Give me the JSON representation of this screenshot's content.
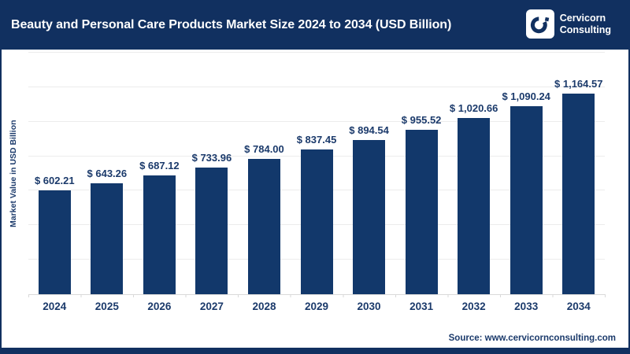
{
  "header": {
    "title": "Beauty and Personal Care Products Market Size 2024 to 2034 (USD Billion)",
    "logo": {
      "name": "Cervicorn Consulting",
      "line1": "Cervicorn",
      "line2": "Consulting"
    }
  },
  "chart_data": {
    "type": "bar",
    "title": "Beauty and Personal Care Products Market Size 2024 to 2034 (USD Billion)",
    "categories": [
      "2024",
      "2025",
      "2026",
      "2027",
      "2028",
      "2029",
      "2030",
      "2031",
      "2032",
      "2033",
      "2034"
    ],
    "values": [
      602.21,
      643.26,
      687.12,
      733.96,
      784.0,
      837.45,
      894.54,
      955.52,
      1020.66,
      1090.24,
      1164.57
    ],
    "bar_labels": [
      "$ 602.21",
      "$ 643.26",
      "$ 687.12",
      "$ 733.96",
      "$ 784.00",
      "$ 837.45",
      "$ 894.54",
      "$ 955.52",
      "$ 1,020.66",
      "$ 1,090.24",
      "$ 1,164.57"
    ],
    "xlabel": "",
    "ylabel": "Market Value in USD Billion",
    "ylim": [
      0,
      1400
    ],
    "grid": true,
    "grid_interval": 200,
    "legend": false,
    "bar_color": "#12386B"
  },
  "footer": {
    "source": "Source: www.cervicornconsulting.com"
  },
  "colors": {
    "navy": "#113060",
    "bar": "#12386B",
    "text_navy": "#1B3A6B",
    "gridline": "#ECECEC",
    "axis_line": "#D9D9D9",
    "background": "#FFFFFF"
  }
}
